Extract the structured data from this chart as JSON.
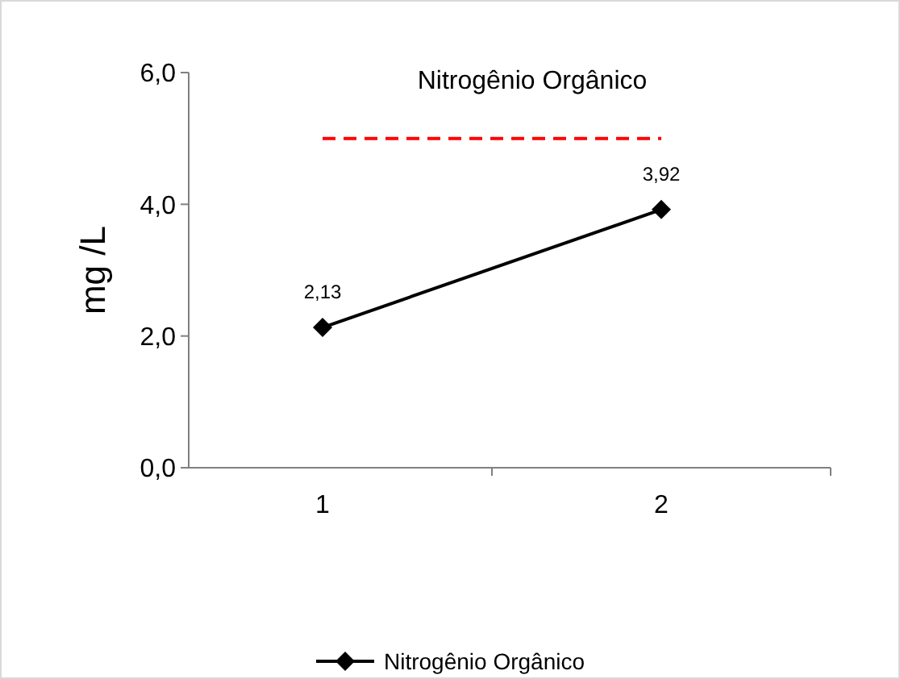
{
  "chart_data": {
    "type": "line",
    "title": "Nitrogênio Orgânico",
    "ylabel": "mg /L",
    "categories": [
      "1",
      "2"
    ],
    "series": [
      {
        "name": "Nitrogênio Orgânico",
        "color": "#000000",
        "values": [
          2.13,
          3.92
        ],
        "value_labels": [
          "2,13",
          "3,92"
        ]
      }
    ],
    "ylim": [
      0,
      6
    ],
    "yticks": [
      {
        "value": 0,
        "label": "0,0"
      },
      {
        "value": 2,
        "label": "2,0"
      },
      {
        "value": 4,
        "label": "4,0"
      },
      {
        "value": 6,
        "label": "6,0"
      }
    ],
    "ref_lines": [
      {
        "axis": "y",
        "value": 5,
        "color": "#ff0000",
        "line_style": "dashed"
      }
    ],
    "marker": "diamond",
    "line_style": "solid",
    "legend": "bottom",
    "grid": false
  }
}
